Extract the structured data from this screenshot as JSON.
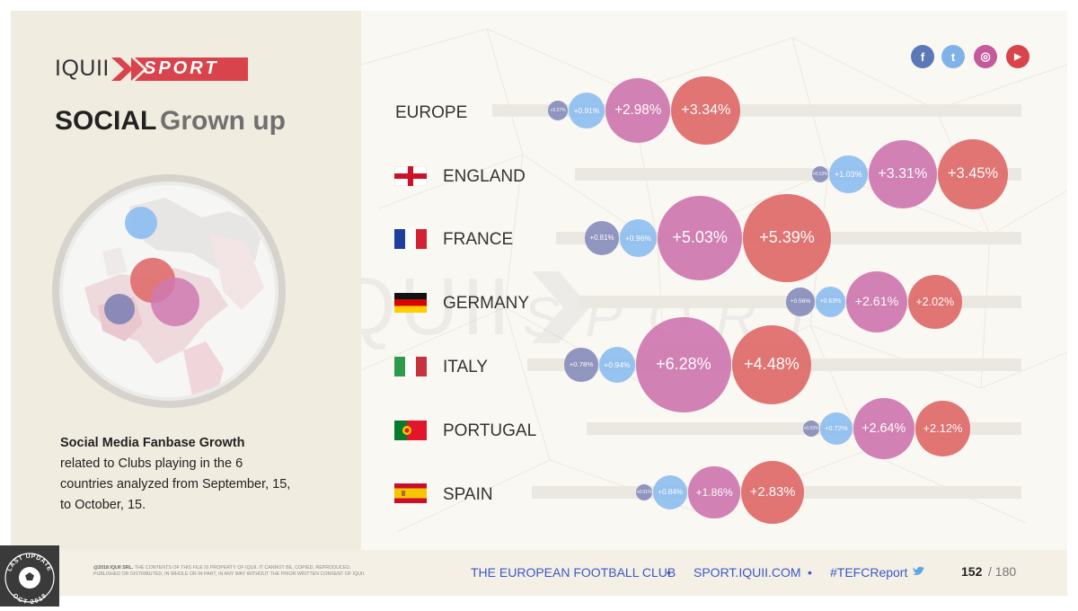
{
  "brand": {
    "name": "IQUII",
    "sport": "SPORT"
  },
  "title": {
    "strong": "SOCIAL",
    "light": "Grown up"
  },
  "description": {
    "bold": "Social Media Fanbase Growth",
    "lines": [
      "related to Clubs playing in the 6",
      "countries analyzed from September, 15,",
      "to October, 15."
    ]
  },
  "social_icons": [
    {
      "name": "facebook",
      "glyph": "f",
      "color": "#5b79b8"
    },
    {
      "name": "twitter",
      "glyph": "t",
      "color": "#7fb3e8"
    },
    {
      "name": "instagram",
      "glyph": "◎",
      "color": "#c45a9c"
    },
    {
      "name": "youtube",
      "glyph": "▶",
      "color": "#d9434b"
    }
  ],
  "series_colors": [
    "#8a8fbd",
    "#8fbff0",
    "#cf79b0",
    "#df6c6a"
  ],
  "chart_data": {
    "type": "bubble",
    "title": "Social Media Fanbase Growth",
    "categories": [
      "EUROPE",
      "ENGLAND",
      "FRANCE",
      "GERMANY",
      "ITALY",
      "PORTUGAL",
      "SPAIN"
    ],
    "rows": [
      {
        "country": "EUROPE",
        "values": [
          0.27,
          0.91,
          2.98,
          3.34
        ],
        "labels": [
          "+0.27%",
          "+0.91%",
          "+2.98%",
          "+3.34%"
        ]
      },
      {
        "country": "ENGLAND",
        "values": [
          0.13,
          1.03,
          3.31,
          3.45
        ],
        "labels": [
          "+0.13%",
          "+1.03%",
          "+3.31%",
          "+3.45%"
        ]
      },
      {
        "country": "FRANCE",
        "values": [
          0.81,
          0.96,
          5.03,
          5.39
        ],
        "labels": [
          "+0.81%",
          "+0.96%",
          "+5.03%",
          "+5.39%"
        ]
      },
      {
        "country": "GERMANY",
        "values": [
          0.56,
          0.63,
          2.61,
          2.02
        ],
        "labels": [
          "+0.56%",
          "+0.63%",
          "+2.61%",
          "+2.02%"
        ]
      },
      {
        "country": "ITALY",
        "values": [
          0.78,
          0.94,
          6.28,
          4.48
        ],
        "labels": [
          "+0.78%",
          "+0.94%",
          "+6.28%",
          "+4.48%"
        ]
      },
      {
        "country": "PORTUGAL",
        "values": [
          0.03,
          0.72,
          2.64,
          2.12
        ],
        "labels": [
          "+0.03%",
          "+0.72%",
          "+2.64%",
          "+2.12%"
        ]
      },
      {
        "country": "SPAIN",
        "values": [
          0.01,
          0.84,
          1.86,
          2.83
        ],
        "labels": [
          "+0.01%",
          "+0.84%",
          "+1.86%",
          "+2.83%"
        ]
      }
    ]
  },
  "footer": {
    "copyright_bold": "@2018 IQUII SRL.",
    "copyright_line1": " THE CONTENTS OF THIS FILE IS PROPERTY OF IQUII. IT CANNOT BE, COPIED, REPRODUCED,",
    "copyright_line2": "PUBLISHED OR DISTRIBUTED, IN WHOLE OR IN PART, IN ANY WAY WITHOUT THE PRIOR WRITTEN CONSENT OF IQUII.",
    "link1": "THE EUROPEAN FOOTBALL CLUB",
    "link2": "SPORT.IQUII.COM",
    "hashtag": "#TEFCReport",
    "bullet": "•",
    "page_current": "152",
    "page_total": "/ 180",
    "badge_top": "LAST UPDATE",
    "badge_bottom": "OCT 2018"
  }
}
